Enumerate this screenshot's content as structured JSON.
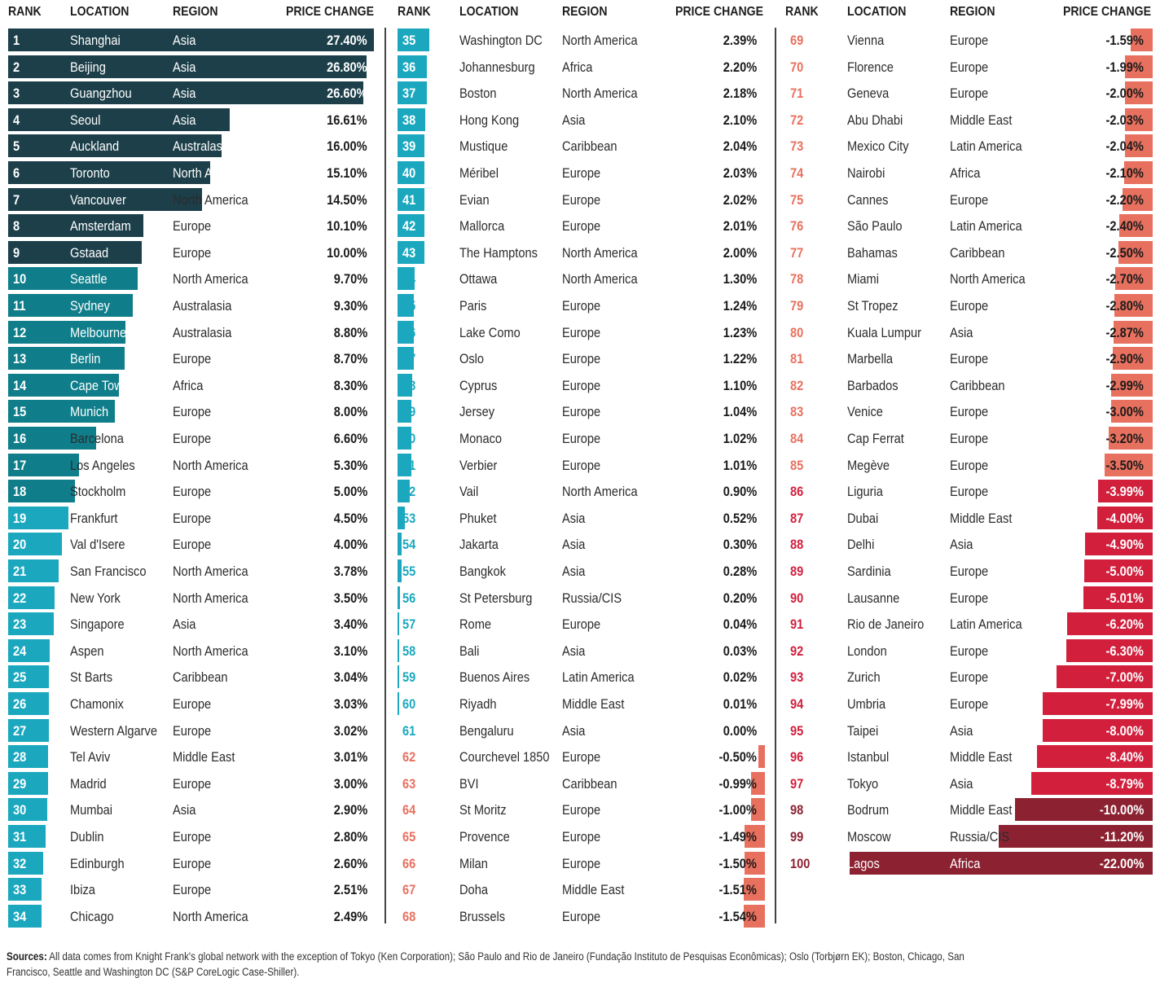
{
  "headers": {
    "rank": "RANK",
    "location": "LOCATION",
    "region": "REGION",
    "change": "PRICE CHANGE"
  },
  "footer": {
    "label": "Sources:",
    "text": "All data comes from Knight Frank's global network with the exception of Tokyo (Ken Corporation); São Paulo and Rio de Janeiro  (Fundação Instituto de Pesquisas Econômicas); Oslo (Torbjørn EK); Boston, Chicago, San Francisco, Seattle and Washington DC (S&P CoreLogic Case-Shiller)."
  },
  "colors": {
    "tier_dark": "#1c3f4a",
    "tier_mid": "#0f7e8a",
    "tier_light": "#1ba8bf",
    "neg_salmon": "#e8705e",
    "neg_crimson": "#d11f3c",
    "neg_maroon": "#8c2231"
  },
  "chart_data": {
    "type": "bar",
    "title": "",
    "xlabel": "PRICE CHANGE",
    "ylabel": "RANK",
    "columns": [
      "RANK",
      "LOCATION",
      "REGION",
      "PRICE CHANGE"
    ],
    "rows": [
      {
        "rank": 1,
        "location": "Shanghai",
        "region": "Asia",
        "change": 27.4,
        "label": "27.40%"
      },
      {
        "rank": 2,
        "location": "Beijing",
        "region": "Asia",
        "change": 26.8,
        "label": "26.80%"
      },
      {
        "rank": 3,
        "location": "Guangzhou",
        "region": "Asia",
        "change": 26.6,
        "label": "26.60%"
      },
      {
        "rank": 4,
        "location": "Seoul",
        "region": "Asia",
        "change": 16.61,
        "label": "16.61%"
      },
      {
        "rank": 5,
        "location": "Auckland",
        "region": "Australasia",
        "change": 16.0,
        "label": "16.00%"
      },
      {
        "rank": 6,
        "location": "Toronto",
        "region": "North America",
        "change": 15.1,
        "label": "15.10%"
      },
      {
        "rank": 7,
        "location": "Vancouver",
        "region": "North America",
        "change": 14.5,
        "label": "14.50%"
      },
      {
        "rank": 8,
        "location": "Amsterdam",
        "region": "Europe",
        "change": 10.1,
        "label": "10.10%"
      },
      {
        "rank": 9,
        "location": "Gstaad",
        "region": "Europe",
        "change": 10.0,
        "label": "10.00%"
      },
      {
        "rank": 10,
        "location": "Seattle",
        "region": "North America",
        "change": 9.7,
        "label": "9.70%"
      },
      {
        "rank": 11,
        "location": "Sydney",
        "region": "Australasia",
        "change": 9.3,
        "label": "9.30%"
      },
      {
        "rank": 12,
        "location": "Melbourne",
        "region": "Australasia",
        "change": 8.8,
        "label": "8.80%"
      },
      {
        "rank": 13,
        "location": "Berlin",
        "region": "Europe",
        "change": 8.7,
        "label": "8.70%"
      },
      {
        "rank": 14,
        "location": "Cape Town",
        "region": "Africa",
        "change": 8.3,
        "label": "8.30%"
      },
      {
        "rank": 15,
        "location": "Munich",
        "region": "Europe",
        "change": 8.0,
        "label": "8.00%"
      },
      {
        "rank": 16,
        "location": "Barcelona",
        "region": "Europe",
        "change": 6.6,
        "label": "6.60%"
      },
      {
        "rank": 17,
        "location": "Los Angeles",
        "region": "North America",
        "change": 5.3,
        "label": "5.30%"
      },
      {
        "rank": 18,
        "location": "Stockholm",
        "region": "Europe",
        "change": 5.0,
        "label": "5.00%"
      },
      {
        "rank": 19,
        "location": "Frankfurt",
        "region": "Europe",
        "change": 4.5,
        "label": "4.50%"
      },
      {
        "rank": 20,
        "location": "Val d'Isere",
        "region": "Europe",
        "change": 4.0,
        "label": "4.00%"
      },
      {
        "rank": 21,
        "location": "San Francisco",
        "region": "North America",
        "change": 3.78,
        "label": "3.78%"
      },
      {
        "rank": 22,
        "location": "New York",
        "region": "North America",
        "change": 3.5,
        "label": "3.50%"
      },
      {
        "rank": 23,
        "location": "Singapore",
        "region": "Asia",
        "change": 3.4,
        "label": "3.40%"
      },
      {
        "rank": 24,
        "location": "Aspen",
        "region": "North America",
        "change": 3.1,
        "label": "3.10%"
      },
      {
        "rank": 25,
        "location": "St Barts",
        "region": "Caribbean",
        "change": 3.04,
        "label": "3.04%"
      },
      {
        "rank": 26,
        "location": "Chamonix",
        "region": "Europe",
        "change": 3.03,
        "label": "3.03%"
      },
      {
        "rank": 27,
        "location": "Western Algarve",
        "region": "Europe",
        "change": 3.02,
        "label": "3.02%"
      },
      {
        "rank": 28,
        "location": "Tel Aviv",
        "region": "Middle East",
        "change": 3.01,
        "label": "3.01%"
      },
      {
        "rank": 29,
        "location": "Madrid",
        "region": "Europe",
        "change": 3.0,
        "label": "3.00%"
      },
      {
        "rank": 30,
        "location": "Mumbai",
        "region": "Asia",
        "change": 2.9,
        "label": "2.90%"
      },
      {
        "rank": 31,
        "location": "Dublin",
        "region": "Europe",
        "change": 2.8,
        "label": "2.80%"
      },
      {
        "rank": 32,
        "location": "Edinburgh",
        "region": "Europe",
        "change": 2.6,
        "label": "2.60%"
      },
      {
        "rank": 33,
        "location": "Ibiza",
        "region": "Europe",
        "change": 2.51,
        "label": "2.51%"
      },
      {
        "rank": 34,
        "location": "Chicago",
        "region": "North America",
        "change": 2.49,
        "label": "2.49%"
      },
      {
        "rank": 35,
        "location": "Washington DC",
        "region": "North America",
        "change": 2.39,
        "label": "2.39%"
      },
      {
        "rank": 36,
        "location": "Johannesburg",
        "region": "Africa",
        "change": 2.2,
        "label": "2.20%"
      },
      {
        "rank": 37,
        "location": "Boston",
        "region": "North America",
        "change": 2.18,
        "label": "2.18%"
      },
      {
        "rank": 38,
        "location": "Hong Kong",
        "region": "Asia",
        "change": 2.1,
        "label": "2.10%"
      },
      {
        "rank": 39,
        "location": "Mustique",
        "region": "Caribbean",
        "change": 2.04,
        "label": "2.04%"
      },
      {
        "rank": 40,
        "location": "Méribel",
        "region": "Europe",
        "change": 2.03,
        "label": "2.03%"
      },
      {
        "rank": 41,
        "location": "Evian",
        "region": "Europe",
        "change": 2.02,
        "label": "2.02%"
      },
      {
        "rank": 42,
        "location": "Mallorca",
        "region": "Europe",
        "change": 2.01,
        "label": "2.01%"
      },
      {
        "rank": 43,
        "location": "The Hamptons",
        "region": "North America",
        "change": 2.0,
        "label": "2.00%"
      },
      {
        "rank": 44,
        "location": "Ottawa",
        "region": "North America",
        "change": 1.3,
        "label": "1.30%"
      },
      {
        "rank": 45,
        "location": "Paris",
        "region": "Europe",
        "change": 1.24,
        "label": "1.24%"
      },
      {
        "rank": 46,
        "location": "Lake Como",
        "region": "Europe",
        "change": 1.23,
        "label": "1.23%"
      },
      {
        "rank": 47,
        "location": "Oslo",
        "region": "Europe",
        "change": 1.22,
        "label": "1.22%"
      },
      {
        "rank": 48,
        "location": "Cyprus",
        "region": "Europe",
        "change": 1.1,
        "label": "1.10%"
      },
      {
        "rank": 49,
        "location": "Jersey",
        "region": "Europe",
        "change": 1.04,
        "label": "1.04%"
      },
      {
        "rank": 50,
        "location": "Monaco",
        "region": "Europe",
        "change": 1.02,
        "label": "1.02%"
      },
      {
        "rank": 51,
        "location": "Verbier",
        "region": "Europe",
        "change": 1.01,
        "label": "1.01%"
      },
      {
        "rank": 52,
        "location": "Vail",
        "region": "North America",
        "change": 0.9,
        "label": "0.90%"
      },
      {
        "rank": 53,
        "location": "Phuket",
        "region": "Asia",
        "change": 0.52,
        "label": "0.52%"
      },
      {
        "rank": 54,
        "location": "Jakarta",
        "region": "Asia",
        "change": 0.3,
        "label": "0.30%"
      },
      {
        "rank": 55,
        "location": "Bangkok",
        "region": "Asia",
        "change": 0.28,
        "label": "0.28%"
      },
      {
        "rank": 56,
        "location": "St Petersburg",
        "region": "Russia/CIS",
        "change": 0.2,
        "label": "0.20%"
      },
      {
        "rank": 57,
        "location": "Rome",
        "region": "Europe",
        "change": 0.04,
        "label": "0.04%"
      },
      {
        "rank": 58,
        "location": "Bali",
        "region": "Asia",
        "change": 0.03,
        "label": "0.03%"
      },
      {
        "rank": 59,
        "location": "Buenos Aires",
        "region": "Latin America",
        "change": 0.02,
        "label": "0.02%"
      },
      {
        "rank": 60,
        "location": "Riyadh",
        "region": "Middle East",
        "change": 0.01,
        "label": "0.01%"
      },
      {
        "rank": 61,
        "location": "Bengaluru",
        "region": "Asia",
        "change": 0.0,
        "label": "0.00%"
      },
      {
        "rank": 62,
        "location": "Courchevel 1850",
        "region": "Europe",
        "change": -0.5,
        "label": "-0.50%"
      },
      {
        "rank": 63,
        "location": "BVI",
        "region": "Caribbean",
        "change": -0.99,
        "label": "-0.99%"
      },
      {
        "rank": 64,
        "location": "St Moritz",
        "region": "Europe",
        "change": -1.0,
        "label": "-1.00%"
      },
      {
        "rank": 65,
        "location": "Provence",
        "region": "Europe",
        "change": -1.49,
        "label": "-1.49%"
      },
      {
        "rank": 66,
        "location": "Milan",
        "region": "Europe",
        "change": -1.5,
        "label": "-1.50%"
      },
      {
        "rank": 67,
        "location": "Doha",
        "region": "Middle East",
        "change": -1.51,
        "label": "-1.51%"
      },
      {
        "rank": 68,
        "location": "Brussels",
        "region": "Europe",
        "change": -1.54,
        "label": "-1.54%"
      },
      {
        "rank": 69,
        "location": "Vienna",
        "region": "Europe",
        "change": -1.59,
        "label": "-1.59%"
      },
      {
        "rank": 70,
        "location": "Florence",
        "region": "Europe",
        "change": -1.99,
        "label": "-1.99%"
      },
      {
        "rank": 71,
        "location": "Geneva",
        "region": "Europe",
        "change": -2.0,
        "label": "-2.00%"
      },
      {
        "rank": 72,
        "location": "Abu Dhabi",
        "region": "Middle East",
        "change": -2.03,
        "label": "-2.03%"
      },
      {
        "rank": 73,
        "location": "Mexico City",
        "region": "Latin America",
        "change": -2.04,
        "label": "-2.04%"
      },
      {
        "rank": 74,
        "location": "Nairobi",
        "region": "Africa",
        "change": -2.1,
        "label": "-2.10%"
      },
      {
        "rank": 75,
        "location": "Cannes",
        "region": "Europe",
        "change": -2.2,
        "label": "-2.20%"
      },
      {
        "rank": 76,
        "location": "São Paulo",
        "region": "Latin America",
        "change": -2.4,
        "label": "-2.40%"
      },
      {
        "rank": 77,
        "location": "Bahamas",
        "region": "Caribbean",
        "change": -2.5,
        "label": "-2.50%"
      },
      {
        "rank": 78,
        "location": "Miami",
        "region": "North America",
        "change": -2.7,
        "label": "-2.70%"
      },
      {
        "rank": 79,
        "location": "St Tropez",
        "region": "Europe",
        "change": -2.8,
        "label": "-2.80%"
      },
      {
        "rank": 80,
        "location": "Kuala Lumpur",
        "region": "Asia",
        "change": -2.87,
        "label": "-2.87%"
      },
      {
        "rank": 81,
        "location": "Marbella",
        "region": "Europe",
        "change": -2.9,
        "label": "-2.90%"
      },
      {
        "rank": 82,
        "location": "Barbados",
        "region": "Caribbean",
        "change": -2.99,
        "label": "-2.99%"
      },
      {
        "rank": 83,
        "location": "Venice",
        "region": "Europe",
        "change": -3.0,
        "label": "-3.00%"
      },
      {
        "rank": 84,
        "location": "Cap Ferrat",
        "region": "Europe",
        "change": -3.2,
        "label": "-3.20%"
      },
      {
        "rank": 85,
        "location": "Megève",
        "region": "Europe",
        "change": -3.5,
        "label": "-3.50%"
      },
      {
        "rank": 86,
        "location": "Liguria",
        "region": "Europe",
        "change": -3.99,
        "label": "-3.99%"
      },
      {
        "rank": 87,
        "location": "Dubai",
        "region": "Middle East",
        "change": -4.0,
        "label": "-4.00%"
      },
      {
        "rank": 88,
        "location": "Delhi",
        "region": "Asia",
        "change": -4.9,
        "label": "-4.90%"
      },
      {
        "rank": 89,
        "location": "Sardinia",
        "region": "Europe",
        "change": -5.0,
        "label": "-5.00%"
      },
      {
        "rank": 90,
        "location": "Lausanne",
        "region": "Europe",
        "change": -5.01,
        "label": "-5.01%"
      },
      {
        "rank": 91,
        "location": "Rio de Janeiro",
        "region": "Latin America",
        "change": -6.2,
        "label": "-6.20%"
      },
      {
        "rank": 92,
        "location": "London",
        "region": "Europe",
        "change": -6.3,
        "label": "-6.30%"
      },
      {
        "rank": 93,
        "location": "Zurich",
        "region": "Europe",
        "change": -7.0,
        "label": "-7.00%"
      },
      {
        "rank": 94,
        "location": "Umbria",
        "region": "Europe",
        "change": -7.99,
        "label": "-7.99%"
      },
      {
        "rank": 95,
        "location": "Taipei",
        "region": "Asia",
        "change": -8.0,
        "label": "-8.00%"
      },
      {
        "rank": 96,
        "location": "Istanbul",
        "region": "Middle East",
        "change": -8.4,
        "label": "-8.40%"
      },
      {
        "rank": 97,
        "location": "Tokyo",
        "region": "Asia",
        "change": -8.79,
        "label": "-8.79%"
      },
      {
        "rank": 98,
        "location": "Bodrum",
        "region": "Middle East",
        "change": -10.0,
        "label": "-10.00%"
      },
      {
        "rank": 99,
        "location": "Moscow",
        "region": "Russia/CIS",
        "change": -11.2,
        "label": "-11.20%"
      },
      {
        "rank": 100,
        "location": "Lagos",
        "region": "Africa",
        "change": -22.0,
        "label": "-22.00%"
      }
    ],
    "panels": [
      {
        "first_rank": 1,
        "last_rank": 34
      },
      {
        "first_rank": 35,
        "last_rank": 68
      },
      {
        "first_rank": 69,
        "last_rank": 100
      }
    ],
    "tiers": [
      {
        "ranks": [
          1,
          9
        ],
        "bar_color": "tier_dark",
        "rank_color": "#ffffff"
      },
      {
        "ranks": [
          10,
          18
        ],
        "bar_color": "tier_mid",
        "rank_color": "#ffffff"
      },
      {
        "ranks": [
          19,
          61
        ],
        "bar_color": "tier_light",
        "rank_color": "#ffffff"
      },
      {
        "ranks": [
          62,
          85
        ],
        "bar_color": "neg_salmon",
        "rank_color": "neg_salmon"
      },
      {
        "ranks": [
          86,
          97
        ],
        "bar_color": "neg_crimson",
        "rank_color": "neg_crimson"
      },
      {
        "ranks": [
          98,
          100
        ],
        "bar_color": "neg_maroon",
        "rank_color": "neg_maroon"
      }
    ]
  }
}
